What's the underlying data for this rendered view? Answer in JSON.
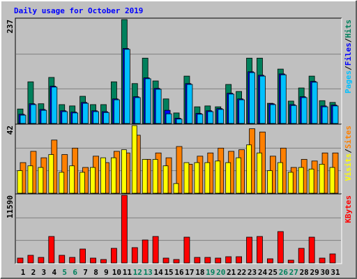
{
  "chart_data": [
    {
      "type": "bar",
      "title": "Daily usage for October 2019",
      "categories": [
        "1",
        "2",
        "3",
        "4",
        "5",
        "6",
        "7",
        "8",
        "9",
        "10",
        "11",
        "12",
        "13",
        "14",
        "15",
        "16",
        "17",
        "18",
        "19",
        "20",
        "21",
        "22",
        "23",
        "24",
        "25",
        "26",
        "27",
        "28",
        "29",
        "30",
        "31"
      ],
      "category_colors": [
        "#000000",
        "#000000",
        "#000000",
        "#000000",
        "#00805c",
        "#00805c",
        "#000000",
        "#000000",
        "#000000",
        "#000000",
        "#000000",
        "#00805c",
        "#00805c",
        "#000000",
        "#000000",
        "#000000",
        "#000000",
        "#000000",
        "#00805c",
        "#00805c",
        "#000000",
        "#000000",
        "#000000",
        "#000000",
        "#000000",
        "#00805c",
        "#00805c",
        "#000000",
        "#000000",
        "#000000",
        "#000000"
      ],
      "legend_separator": "/",
      "ylim": [
        0,
        237
      ],
      "yticks": [
        237
      ],
      "series": [
        {
          "name": "Hits",
          "color": "#00805c",
          "values": [
            33,
            95,
            45,
            105,
            43,
            40,
            62,
            43,
            43,
            95,
            237,
            91,
            149,
            97,
            56,
            24,
            108,
            38,
            40,
            38,
            89,
            73,
            149,
            149,
            46,
            124,
            51,
            81,
            108,
            52,
            48
          ]
        },
        {
          "name": "Files",
          "color": "#0000ff",
          "values": [
            21,
            45,
            32,
            85,
            29,
            26,
            48,
            29,
            27,
            56,
            171,
            61,
            104,
            80,
            30,
            12,
            91,
            23,
            29,
            34,
            69,
            56,
            118,
            110,
            45,
            113,
            43,
            61,
            96,
            40,
            42
          ]
        },
        {
          "name": "Pages",
          "color": "#00c0ff",
          "values": [
            19,
            43,
            30,
            83,
            27,
            24,
            46,
            27,
            25,
            54,
            169,
            59,
            102,
            78,
            22,
            10,
            89,
            21,
            27,
            32,
            67,
            54,
            116,
            108,
            43,
            111,
            41,
            59,
            94,
            38,
            40
          ]
        }
      ]
    },
    {
      "type": "bar",
      "ylim": [
        0,
        42
      ],
      "yticks": [
        42
      ],
      "series": [
        {
          "name": "Sites",
          "color": "#ff8000",
          "values": [
            19,
            26,
            22,
            33,
            24,
            28,
            16,
            23,
            19,
            26,
            25,
            36,
            21,
            25,
            22,
            29,
            18,
            23,
            25,
            28,
            26,
            27,
            40,
            38,
            23,
            28,
            16,
            21,
            20,
            25,
            25
          ]
        },
        {
          "name": "Visits",
          "color": "#ffff00",
          "values": [
            14,
            17,
            16,
            24,
            13,
            17,
            13,
            16,
            22,
            22,
            27,
            42,
            21,
            21,
            17,
            6,
            19,
            19,
            19,
            20,
            19,
            22,
            30,
            25,
            14,
            19,
            13,
            16,
            15,
            18,
            16
          ]
        }
      ]
    },
    {
      "type": "bar",
      "ylim": [
        0,
        11590
      ],
      "yticks": [
        11590
      ],
      "series": [
        {
          "name": "KBytes",
          "color": "#ff0000",
          "values": [
            836,
            1314,
            956,
            4540,
            1314,
            956,
            2390,
            836,
            597,
            2509,
            11590,
            2629,
            3943,
            4540,
            836,
            597,
            4421,
            956,
            956,
            836,
            1075,
            1075,
            4421,
            4540,
            717,
            5377,
            478,
            2509,
            4421,
            836,
            1553
          ]
        }
      ]
    }
  ]
}
